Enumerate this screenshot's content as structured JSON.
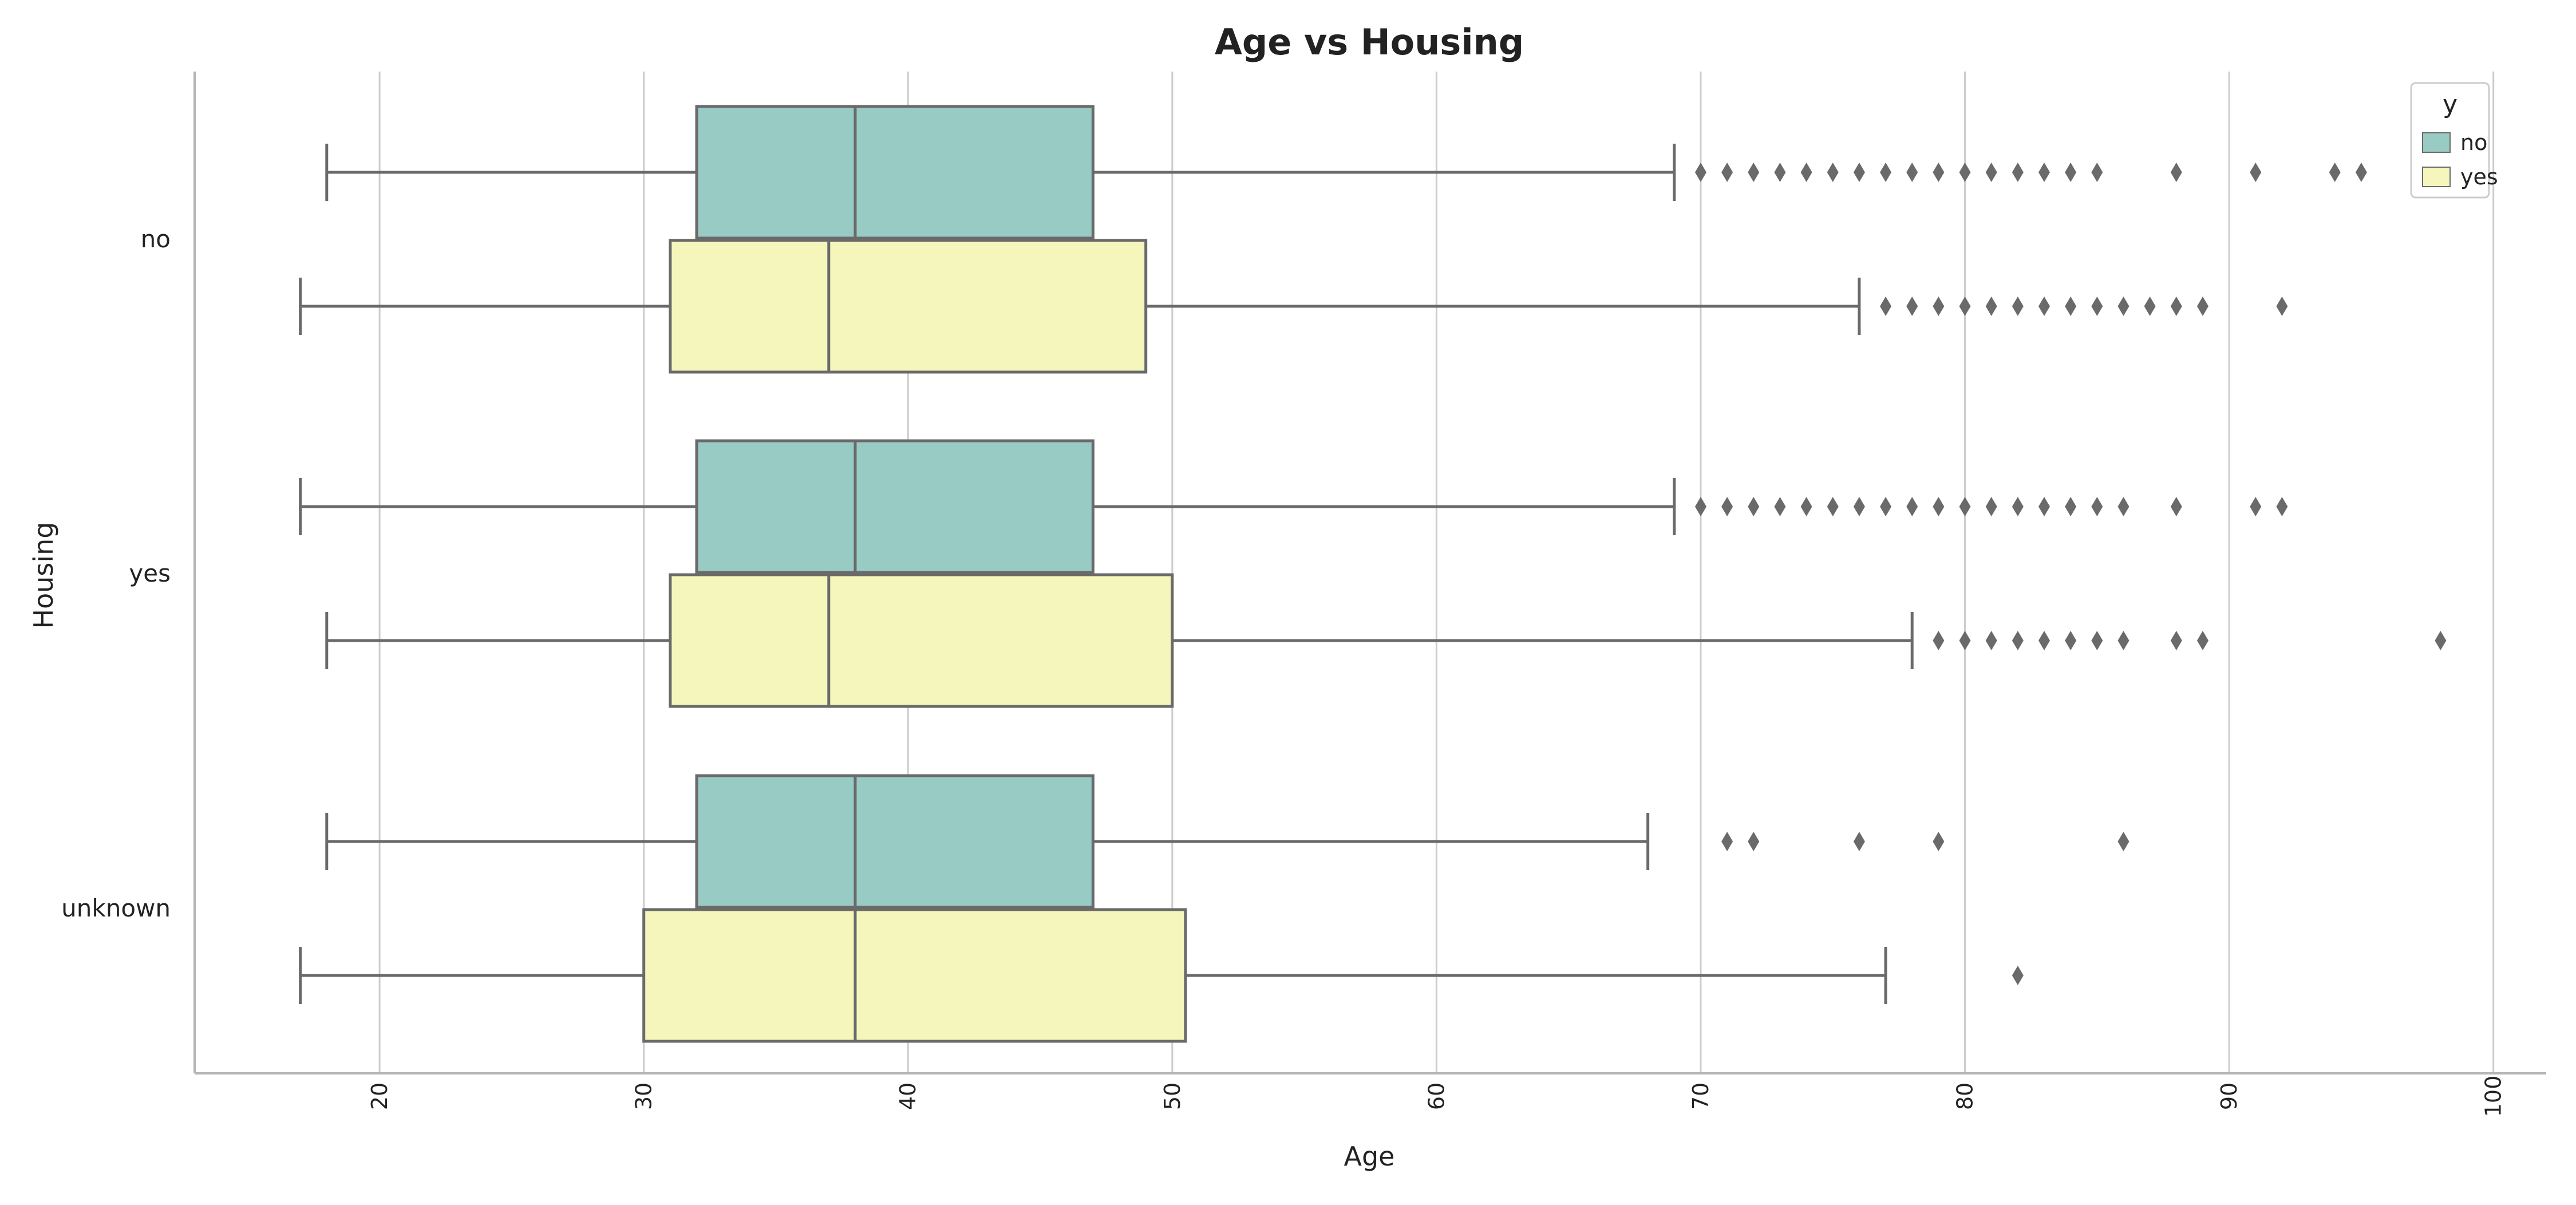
{
  "chart_data": {
    "type": "boxplot",
    "orientation": "horizontal",
    "title": "Age vs Housing",
    "xlabel": "Age",
    "ylabel": "Housing",
    "xlim": [
      13,
      102
    ],
    "xticks": [
      20,
      30,
      40,
      50,
      60,
      70,
      80,
      90,
      100
    ],
    "xtick_labels": [
      "20",
      "30",
      "40",
      "50",
      "60",
      "70",
      "80",
      "90",
      "100"
    ],
    "categories": [
      "no",
      "yes",
      "unknown"
    ],
    "grid": "vertical",
    "legend": {
      "title": "y",
      "placement": "top-right",
      "entries": [
        {
          "label": "no",
          "color": "#97cbc3"
        },
        {
          "label": "yes",
          "color": "#f5f6bb"
        }
      ]
    },
    "series": [
      {
        "name": "no",
        "color": "#97cbc3",
        "boxes": [
          {
            "category": "no",
            "whislo": 18,
            "q1": 32,
            "med": 38,
            "q3": 47,
            "whishi": 69,
            "fliers": [
              70,
              71,
              72,
              73,
              74,
              75,
              76,
              77,
              78,
              79,
              80,
              81,
              82,
              83,
              84,
              85,
              88,
              91,
              94,
              95
            ]
          },
          {
            "category": "yes",
            "whislo": 17,
            "q1": 32,
            "med": 38,
            "q3": 47,
            "whishi": 69,
            "fliers": [
              70,
              71,
              72,
              73,
              74,
              75,
              76,
              77,
              78,
              79,
              80,
              81,
              82,
              83,
              84,
              85,
              86,
              88,
              91,
              92
            ]
          },
          {
            "category": "unknown",
            "whislo": 18,
            "q1": 32,
            "med": 38,
            "q3": 47,
            "whishi": 68,
            "fliers": [
              71,
              72,
              76,
              79,
              86
            ]
          }
        ]
      },
      {
        "name": "yes",
        "color": "#f5f6bb",
        "boxes": [
          {
            "category": "no",
            "whislo": 17,
            "q1": 31,
            "med": 37,
            "q3": 49,
            "whishi": 76,
            "fliers": [
              77,
              78,
              79,
              80,
              81,
              82,
              83,
              84,
              85,
              86,
              87,
              88,
              89,
              92
            ]
          },
          {
            "category": "yes",
            "whislo": 18,
            "q1": 31,
            "med": 37,
            "q3": 50,
            "whishi": 78,
            "fliers": [
              79,
              80,
              81,
              82,
              83,
              84,
              85,
              86,
              88,
              89,
              98
            ]
          },
          {
            "category": "unknown",
            "whislo": 17,
            "q1": 30,
            "med": 38,
            "q3": 50.5,
            "whishi": 77,
            "fliers": [
              82
            ]
          }
        ]
      }
    ],
    "colors": {
      "line": "#6a6a6a",
      "grid": "#cccccc",
      "spine": "#b4b4b4"
    }
  }
}
